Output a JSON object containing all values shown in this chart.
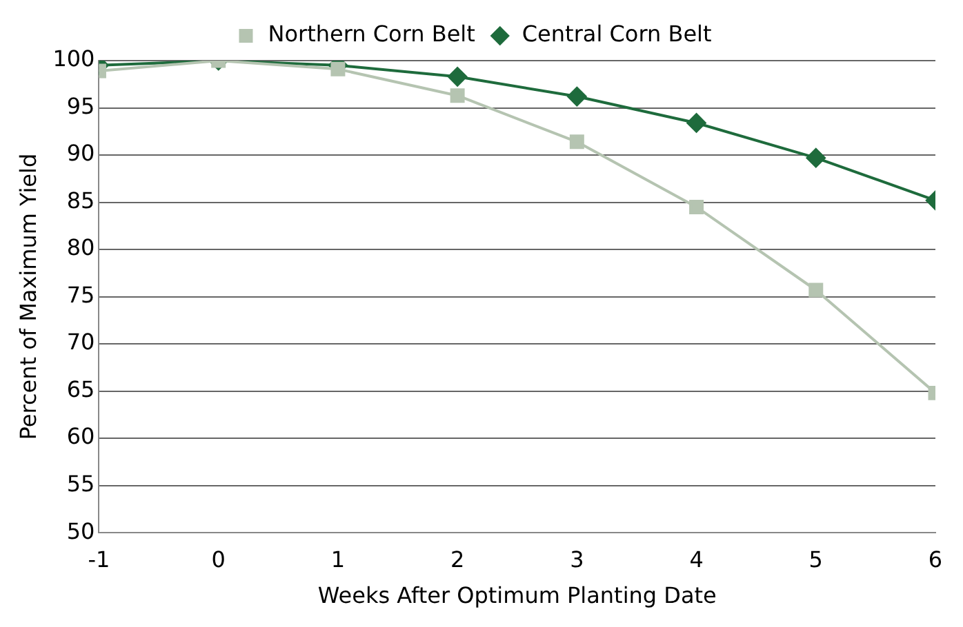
{
  "chart_data": {
    "type": "line",
    "xlabel": "Weeks After Optimum Planting Date",
    "ylabel": "Percent of Maximum Yield",
    "x": [
      -1,
      0,
      1,
      2,
      3,
      4,
      5,
      6
    ],
    "series": [
      {
        "name": "Central Corn Belt",
        "color": "#1e6b3c",
        "marker": "diamond",
        "values": [
          99.5,
          100,
          99.5,
          98.3,
          96.2,
          93.4,
          89.7,
          85.2
        ]
      },
      {
        "name": "Northern Corn Belt",
        "color": "#b5c4b1",
        "marker": "square",
        "values": [
          98.9,
          100,
          99.1,
          96.3,
          91.4,
          84.5,
          75.7,
          64.8
        ]
      }
    ],
    "xlim": [
      -1,
      6
    ],
    "xticks": [
      -1,
      0,
      1,
      2,
      3,
      4,
      5,
      6
    ],
    "ylim": [
      50,
      100
    ],
    "yticks": [
      50,
      55,
      60,
      65,
      70,
      75,
      80,
      85,
      90,
      95,
      100
    ],
    "grid": "y",
    "legend": "top"
  }
}
